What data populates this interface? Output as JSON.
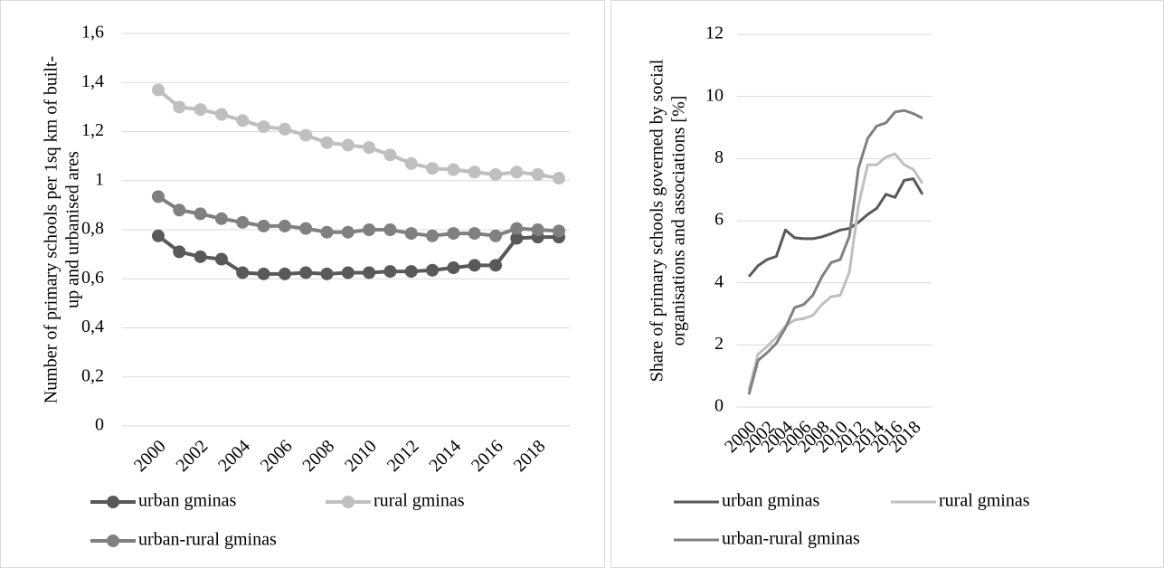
{
  "chart_data": [
    {
      "type": "line",
      "ylabel": [
        "Number of primary schools per 1sq km of built-",
        "up and urbanised ares"
      ],
      "categories": [
        "2000",
        null,
        "2002",
        null,
        "2004",
        null,
        "2006",
        null,
        "2008",
        null,
        "2010",
        null,
        "2012",
        null,
        "2014",
        null,
        "2016",
        null,
        "2018",
        null
      ],
      "ylim": [
        0,
        1.6
      ],
      "yticks": [
        0,
        {
          "value": 0.2,
          "label": "0,2"
        },
        {
          "value": 0.4,
          "label": "0,4"
        },
        {
          "value": 0.6,
          "label": "0,6"
        },
        {
          "value": 0.8,
          "label": "0,8"
        },
        1,
        {
          "value": 1.2,
          "label": "1,2"
        },
        {
          "value": 1.4,
          "label": "1,4"
        },
        {
          "value": 1.6,
          "label": "1,6"
        }
      ],
      "grid": true,
      "markers": true,
      "series": [
        {
          "name": "urban gminas",
          "color": "#595959",
          "values": [
            0.775,
            0.71,
            0.69,
            0.68,
            0.625,
            0.62,
            0.62,
            0.625,
            0.62,
            0.625,
            0.625,
            0.63,
            0.63,
            0.635,
            0.645,
            0.655,
            0.655,
            0.765,
            0.77,
            0.77
          ]
        },
        {
          "name": "rural gminas",
          "color": "#bfbfbf",
          "values": [
            1.37,
            1.3,
            1.29,
            1.27,
            1.245,
            1.22,
            1.21,
            1.185,
            1.155,
            1.145,
            1.135,
            1.105,
            1.07,
            1.05,
            1.045,
            1.035,
            1.025,
            1.035,
            1.025,
            1.01
          ]
        },
        {
          "name": "urban-rural gminas",
          "color": "#808080",
          "values": [
            0.935,
            0.88,
            0.865,
            0.845,
            0.83,
            0.815,
            0.815,
            0.805,
            0.79,
            0.79,
            0.8,
            0.8,
            0.785,
            0.775,
            0.785,
            0.785,
            0.775,
            0.805,
            0.8,
            0.795
          ]
        }
      ]
    },
    {
      "type": "line",
      "ylabel": [
        "Share of primary schools governed by social",
        "organisations and associations [%]"
      ],
      "categories": [
        "2000",
        null,
        "2002",
        null,
        "2004",
        null,
        "2006",
        null,
        "2008",
        null,
        "2010",
        null,
        "2012",
        null,
        "2014",
        null,
        "2016",
        null,
        "2018",
        null
      ],
      "ylim": [
        0,
        12
      ],
      "yticks": [
        0,
        2,
        4,
        6,
        8,
        10,
        12
      ],
      "grid": true,
      "markers": false,
      "series": [
        {
          "name": "urban gminas",
          "color": "#595959",
          "values": [
            4.2,
            4.55,
            4.75,
            4.85,
            5.7,
            5.45,
            5.42,
            5.42,
            5.48,
            5.58,
            5.7,
            5.75,
            5.95,
            6.2,
            6.4,
            6.85,
            6.75,
            7.3,
            7.35,
            6.85
          ]
        },
        {
          "name": "rural gminas",
          "color": "#bfbfbf",
          "values": [
            0.55,
            1.7,
            1.95,
            2.25,
            2.6,
            2.8,
            2.85,
            2.95,
            3.3,
            3.55,
            3.6,
            4.35,
            6.5,
            7.8,
            7.8,
            8.05,
            8.15,
            7.8,
            7.65,
            7.2
          ]
        },
        {
          "name": "urban-rural gminas",
          "color": "#808080",
          "values": [
            0.4,
            1.5,
            1.75,
            2.05,
            2.55,
            3.2,
            3.3,
            3.6,
            4.2,
            4.65,
            4.75,
            5.5,
            7.7,
            8.65,
            9.05,
            9.15,
            9.5,
            9.55,
            9.45,
            9.3
          ]
        }
      ]
    }
  ]
}
